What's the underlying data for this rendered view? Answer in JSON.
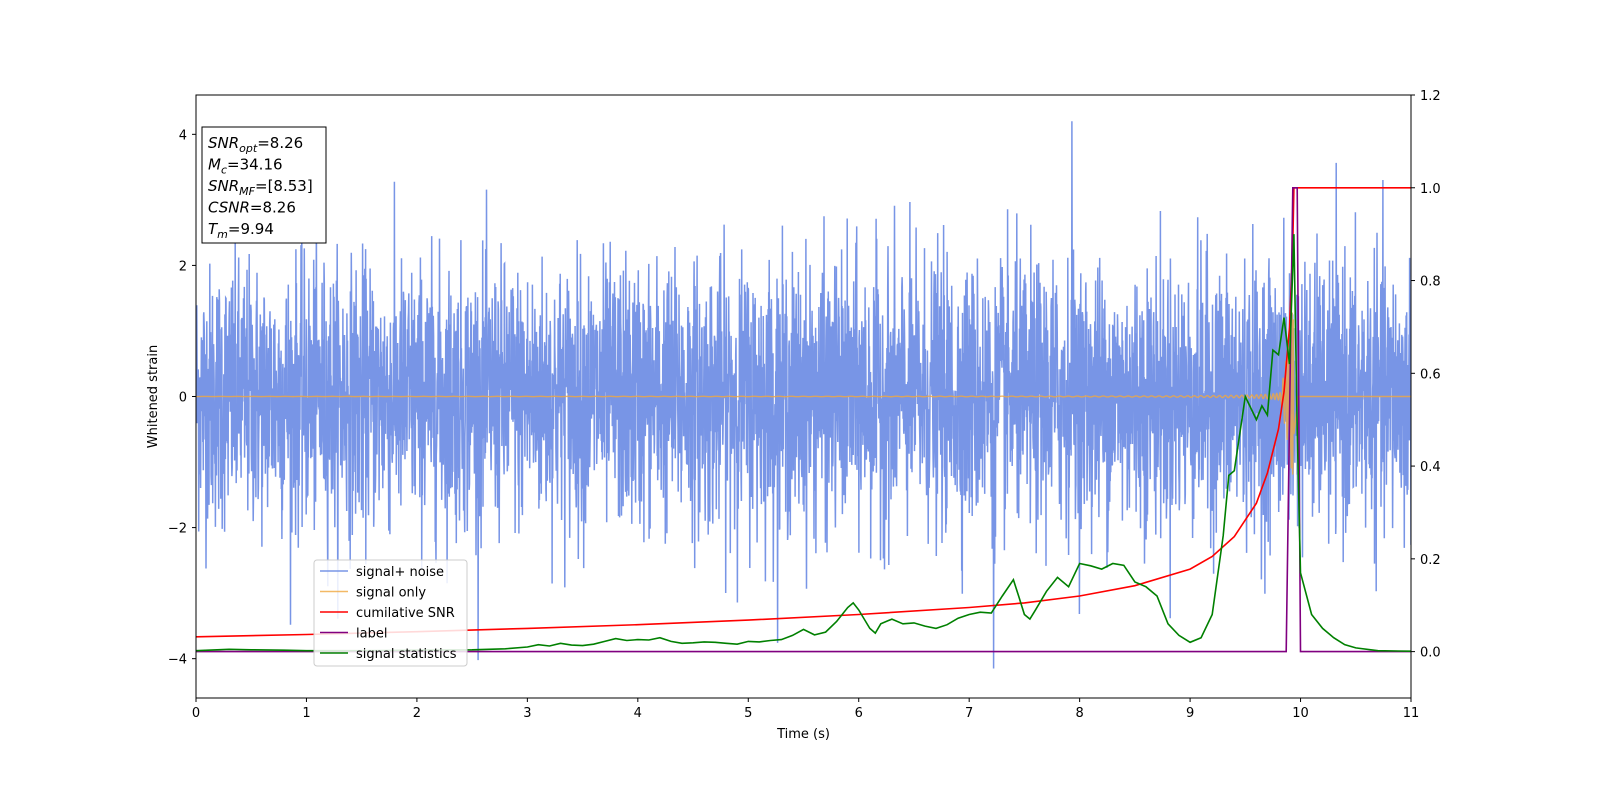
{
  "chart_data": {
    "type": "line",
    "xlabel": "Time (s)",
    "ylabel": "Whitened strain",
    "ylabel_right": "",
    "xlim": [
      0,
      11
    ],
    "ylim": [
      -4.6,
      4.6
    ],
    "ylim_right": [
      -0.1,
      1.2
    ],
    "x_ticks": [
      0,
      1,
      2,
      3,
      4,
      5,
      6,
      7,
      8,
      9,
      10,
      11
    ],
    "y_ticks": [
      -4,
      -2,
      0,
      2,
      4
    ],
    "y_ticks_right": [
      0.0,
      0.2,
      0.4,
      0.6,
      0.8,
      1.0,
      1.2
    ],
    "grid": false,
    "legend_position": "lower-left",
    "annotation": [
      {
        "sym": "SNR",
        "sub": "opt",
        "val": "=8.26"
      },
      {
        "sym": "M",
        "sub": "c",
        "val": "=34.16"
      },
      {
        "sym": "SNR",
        "sub": "MF",
        "val": "=[8.53]"
      },
      {
        "sym": "CSNR",
        "sub": "",
        "val": "=8.26"
      },
      {
        "sym": "T",
        "sub": "m",
        "val": "=9.94"
      }
    ],
    "series": [
      {
        "name": "signal+ noise",
        "color": "#7895e6",
        "axis": "left",
        "style": "noise",
        "noise_sigma": 1.0,
        "noise_extreme_max": 4.2,
        "noise_extreme_min": -4.15
      },
      {
        "name": "signal only",
        "color": "#f0a840",
        "axis": "left",
        "style": "chirp",
        "merger_time": 9.94,
        "max_amplitude": 1.3
      },
      {
        "name": "cumilative SNR",
        "color": "#ff0000",
        "axis": "right",
        "x": [
          0,
          1,
          2,
          3,
          4,
          5,
          6,
          7,
          7.5,
          8,
          8.5,
          9,
          9.2,
          9.4,
          9.6,
          9.7,
          9.8,
          9.85,
          9.9,
          9.93,
          9.94,
          11
        ],
        "y": [
          0.032,
          0.037,
          0.043,
          0.05,
          0.058,
          0.068,
          0.08,
          0.095,
          0.105,
          0.12,
          0.142,
          0.178,
          0.205,
          0.248,
          0.32,
          0.385,
          0.48,
          0.56,
          0.7,
          0.88,
          1.0,
          1.0
        ]
      },
      {
        "name": "label",
        "color": "#800080",
        "axis": "right",
        "x": [
          0,
          9.87,
          9.93,
          9.97,
          10.0,
          11
        ],
        "y": [
          0,
          0,
          1.0,
          1.0,
          0,
          0
        ]
      },
      {
        "name": "signal statistics",
        "color": "#008000",
        "axis": "right",
        "x": [
          0,
          0.3,
          0.5,
          0.8,
          1.0,
          1.5,
          2.0,
          2.5,
          2.8,
          3.0,
          3.1,
          3.2,
          3.3,
          3.4,
          3.5,
          3.6,
          3.7,
          3.8,
          3.9,
          4.0,
          4.1,
          4.2,
          4.3,
          4.4,
          4.5,
          4.6,
          4.7,
          4.8,
          4.9,
          5.0,
          5.1,
          5.2,
          5.3,
          5.4,
          5.5,
          5.6,
          5.7,
          5.8,
          5.9,
          5.95,
          6.0,
          6.1,
          6.15,
          6.2,
          6.3,
          6.4,
          6.5,
          6.6,
          6.7,
          6.8,
          6.9,
          7.0,
          7.1,
          7.2,
          7.3,
          7.4,
          7.45,
          7.5,
          7.55,
          7.6,
          7.7,
          7.8,
          7.9,
          8.0,
          8.1,
          8.2,
          8.3,
          8.4,
          8.5,
          8.6,
          8.7,
          8.8,
          8.9,
          9.0,
          9.1,
          9.2,
          9.3,
          9.35,
          9.4,
          9.5,
          9.6,
          9.65,
          9.7,
          9.75,
          9.8,
          9.85,
          9.9,
          9.94,
          9.97,
          10.0,
          10.1,
          10.2,
          10.3,
          10.4,
          10.5,
          10.7,
          11.0
        ],
        "y": [
          0.002,
          0.005,
          0.004,
          0.003,
          0.002,
          0.002,
          0.003,
          0.004,
          0.006,
          0.01,
          0.015,
          0.012,
          0.018,
          0.014,
          0.013,
          0.016,
          0.022,
          0.028,
          0.024,
          0.026,
          0.025,
          0.03,
          0.022,
          0.018,
          0.019,
          0.021,
          0.02,
          0.018,
          0.016,
          0.022,
          0.021,
          0.024,
          0.026,
          0.035,
          0.048,
          0.036,
          0.042,
          0.065,
          0.095,
          0.105,
          0.09,
          0.05,
          0.04,
          0.06,
          0.07,
          0.06,
          0.062,
          0.055,
          0.05,
          0.058,
          0.072,
          0.08,
          0.085,
          0.083,
          0.12,
          0.155,
          0.118,
          0.08,
          0.07,
          0.09,
          0.13,
          0.16,
          0.14,
          0.19,
          0.185,
          0.178,
          0.19,
          0.186,
          0.15,
          0.14,
          0.12,
          0.06,
          0.035,
          0.02,
          0.03,
          0.08,
          0.25,
          0.38,
          0.39,
          0.55,
          0.5,
          0.53,
          0.51,
          0.65,
          0.64,
          0.72,
          0.62,
          0.9,
          0.48,
          0.17,
          0.08,
          0.05,
          0.03,
          0.015,
          0.008,
          0.002,
          0.001
        ]
      }
    ]
  }
}
